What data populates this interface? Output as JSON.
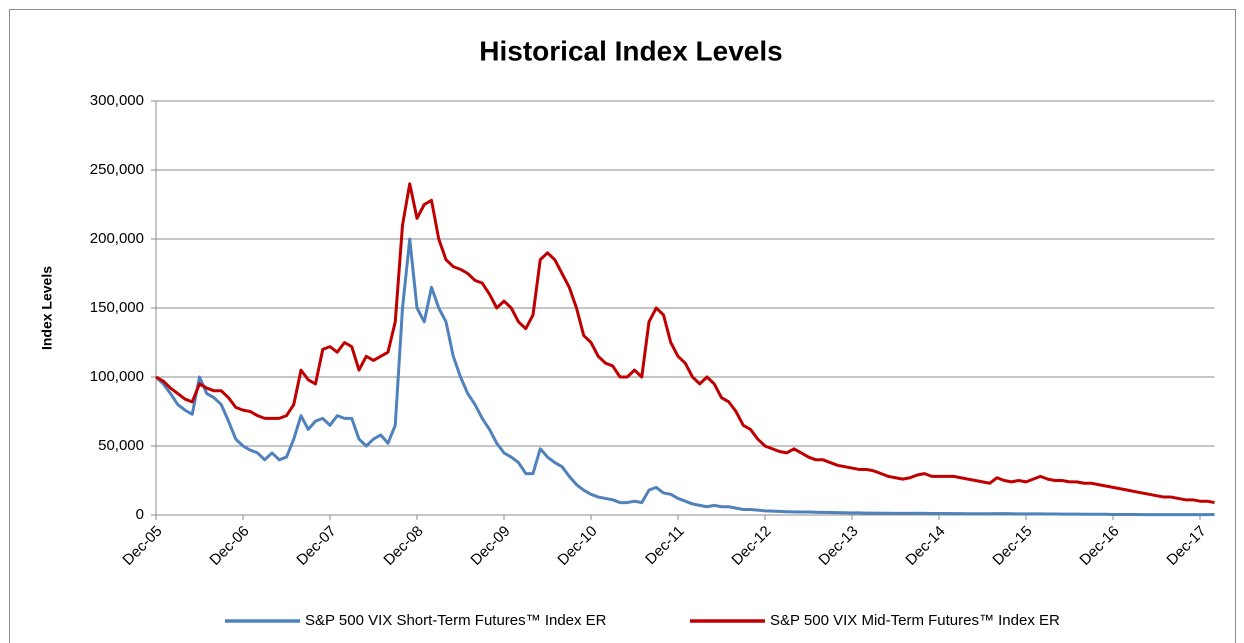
{
  "chart_data": {
    "type": "line",
    "title": "Historical Index Levels",
    "y_label": "Index Levels",
    "categories": [
      "Dec-05",
      null,
      null,
      null,
      null,
      null,
      null,
      null,
      null,
      null,
      null,
      null,
      "Dec-06",
      null,
      null,
      null,
      null,
      null,
      null,
      null,
      null,
      null,
      null,
      null,
      "Dec-07",
      null,
      null,
      null,
      null,
      null,
      null,
      null,
      null,
      null,
      null,
      null,
      "Dec-08",
      null,
      null,
      null,
      null,
      null,
      null,
      null,
      null,
      null,
      null,
      null,
      "Dec-09",
      null,
      null,
      null,
      null,
      null,
      null,
      null,
      null,
      null,
      null,
      null,
      "Dec-10",
      null,
      null,
      null,
      null,
      null,
      null,
      null,
      null,
      null,
      null,
      null,
      "Dec-11",
      null,
      null,
      null,
      null,
      null,
      null,
      null,
      null,
      null,
      null,
      null,
      "Dec-12",
      null,
      null,
      null,
      null,
      null,
      null,
      null,
      null,
      null,
      null,
      null,
      "Dec-13",
      null,
      null,
      null,
      null,
      null,
      null,
      null,
      null,
      null,
      null,
      null,
      "Dec-14",
      null,
      null,
      null,
      null,
      null,
      null,
      null,
      null,
      null,
      null,
      null,
      "Dec-15",
      null,
      null,
      null,
      null,
      null,
      null,
      null,
      null,
      null,
      null,
      null,
      "Dec-16",
      null,
      null,
      null,
      null,
      null,
      null,
      null,
      null,
      null,
      null,
      null,
      "Dec-17",
      null,
      null
    ],
    "series": [
      {
        "name": "S&P 500 VIX Short-Term Futures™ Index ER",
        "color": "#4f81bd",
        "values": [
          100000,
          95000,
          88000,
          80000,
          76000,
          73000,
          100000,
          88000,
          85000,
          80000,
          68000,
          55000,
          50000,
          47000,
          45000,
          40000,
          45000,
          40000,
          42000,
          55000,
          72000,
          62000,
          68000,
          70000,
          65000,
          72000,
          70000,
          70000,
          55000,
          50000,
          55000,
          58000,
          52000,
          65000,
          150000,
          200000,
          150000,
          140000,
          165000,
          150000,
          140000,
          115000,
          100000,
          88000,
          80000,
          70000,
          62000,
          52000,
          45000,
          42000,
          38000,
          30000,
          30000,
          48000,
          42000,
          38000,
          35000,
          28000,
          22000,
          18000,
          15000,
          13000,
          12000,
          11000,
          9000,
          9000,
          10000,
          9000,
          18000,
          20000,
          16000,
          15000,
          12000,
          10000,
          8000,
          7000,
          6000,
          7000,
          6000,
          6000,
          5000,
          4000,
          4000,
          3500,
          3000,
          2800,
          2600,
          2400,
          2300,
          2200,
          2200,
          2000,
          1900,
          1800,
          1700,
          1600,
          1500,
          1500,
          1400,
          1400,
          1300,
          1300,
          1200,
          1200,
          1200,
          1300,
          1200,
          1100,
          1100,
          1100,
          1000,
          1000,
          900,
          900,
          900,
          900,
          1000,
          1000,
          900,
          800,
          800,
          800,
          800,
          700,
          700,
          600,
          600,
          600,
          500,
          500,
          500,
          500,
          400,
          400,
          400,
          400,
          300,
          300,
          300,
          300,
          300,
          300,
          300,
          300,
          300,
          300,
          400
        ]
      },
      {
        "name": "S&P 500 VIX Mid-Term Futures™ Index ER",
        "color": "#c00000",
        "values": [
          100000,
          97000,
          92000,
          88000,
          84000,
          82000,
          95000,
          92000,
          90000,
          90000,
          85000,
          78000,
          76000,
          75000,
          72000,
          70000,
          70000,
          70000,
          72000,
          80000,
          105000,
          98000,
          95000,
          120000,
          122000,
          118000,
          125000,
          122000,
          105000,
          115000,
          112000,
          115000,
          118000,
          140000,
          210000,
          240000,
          215000,
          225000,
          228000,
          200000,
          185000,
          180000,
          178000,
          175000,
          170000,
          168000,
          160000,
          150000,
          155000,
          150000,
          140000,
          135000,
          145000,
          185000,
          190000,
          185000,
          175000,
          165000,
          150000,
          130000,
          125000,
          115000,
          110000,
          108000,
          100000,
          100000,
          105000,
          100000,
          140000,
          150000,
          145000,
          125000,
          115000,
          110000,
          100000,
          95000,
          100000,
          95000,
          85000,
          82000,
          75000,
          65000,
          62000,
          55000,
          50000,
          48000,
          46000,
          45000,
          48000,
          45000,
          42000,
          40000,
          40000,
          38000,
          36000,
          35000,
          34000,
          33000,
          33000,
          32000,
          30000,
          28000,
          27000,
          26000,
          27000,
          29000,
          30000,
          28000,
          28000,
          28000,
          28000,
          27000,
          26000,
          25000,
          24000,
          23000,
          27000,
          25000,
          24000,
          25000,
          24000,
          26000,
          28000,
          26000,
          25000,
          25000,
          24000,
          24000,
          23000,
          23000,
          22000,
          21000,
          20000,
          19000,
          18000,
          17000,
          16000,
          15000,
          14000,
          13000,
          13000,
          12000,
          11000,
          11000,
          10000,
          10000,
          9000
        ]
      }
    ],
    "ylim": [
      0,
      300000
    ],
    "yticks": [
      0,
      {
        "value": 50000,
        "label": "50,000"
      },
      {
        "value": 100000,
        "label": "100,000"
      },
      {
        "value": 150000,
        "label": "150,000"
      },
      {
        "value": 200000,
        "label": "200,000"
      },
      {
        "value": 250000,
        "label": "250,000"
      },
      {
        "value": 300000,
        "label": "300,000"
      }
    ],
    "grid": true,
    "legend": "bottom"
  }
}
